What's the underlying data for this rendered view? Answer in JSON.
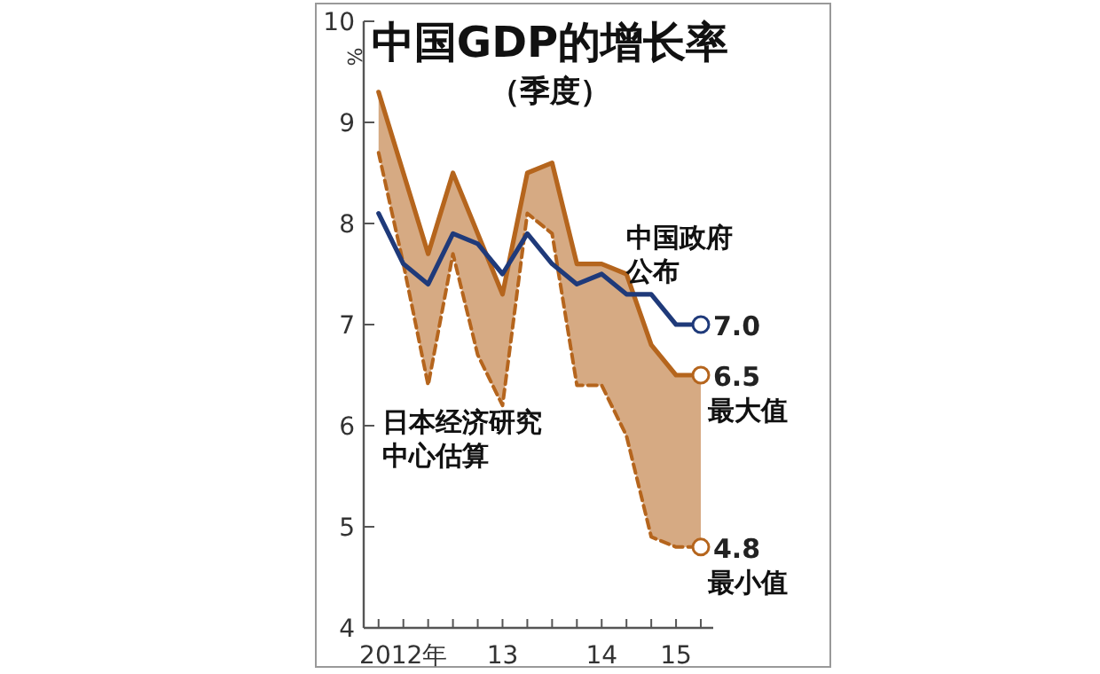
{
  "chart_data": {
    "type": "line",
    "title": "中国GDP的增长率",
    "subtitle": "（季度）",
    "ylabel": "%",
    "categories": [
      null,
      "2012年",
      null,
      null,
      null,
      "13",
      null,
      null,
      null,
      "14",
      null,
      null,
      "15",
      null
    ],
    "ylim": [
      4,
      10
    ],
    "yticks": [
      4,
      5,
      6,
      7,
      8,
      9,
      10
    ],
    "grid": false,
    "annotations": [
      "日本经济研究中心估算"
    ],
    "series": [
      {
        "name": "最大值",
        "color": "#b5651d",
        "line_style": "solid",
        "values": [
          9.3,
          8.5,
          7.7,
          8.5,
          7.9,
          7.3,
          8.5,
          8.6,
          7.6,
          7.6,
          7.5,
          6.8,
          6.5,
          6.5
        ],
        "lower": [
          8.7,
          7.6,
          6.4,
          7.7,
          6.7,
          6.2,
          8.1,
          7.9,
          6.4,
          6.4,
          5.9,
          4.9,
          4.8,
          4.8
        ],
        "upper": [
          9.3,
          8.5,
          7.7,
          8.5,
          7.9,
          7.3,
          8.5,
          8.6,
          7.6,
          7.6,
          7.5,
          6.8,
          6.5,
          6.5
        ],
        "value_labels": [
          null,
          null,
          null,
          null,
          null,
          null,
          null,
          null,
          null,
          null,
          null,
          null,
          null,
          "6.5"
        ]
      },
      {
        "name": "最小值",
        "color": "#b5651d",
        "line_style": "dashed",
        "values": [
          8.7,
          7.6,
          6.4,
          7.7,
          6.7,
          6.2,
          8.1,
          7.9,
          6.4,
          6.4,
          5.9,
          4.9,
          4.8,
          4.8
        ],
        "value_labels": [
          null,
          null,
          null,
          null,
          null,
          null,
          null,
          null,
          null,
          null,
          null,
          null,
          null,
          "4.8"
        ]
      },
      {
        "name": "中国政府公布",
        "color": "#1f3a7a",
        "line_style": "solid",
        "values": [
          8.1,
          7.6,
          7.4,
          7.9,
          7.8,
          7.5,
          7.9,
          7.6,
          7.4,
          7.5,
          7.3,
          7.3,
          7.0,
          7.0
        ],
        "value_labels": [
          null,
          null,
          null,
          null,
          null,
          null,
          null,
          null,
          null,
          null,
          null,
          null,
          null,
          "7.0"
        ]
      }
    ]
  }
}
